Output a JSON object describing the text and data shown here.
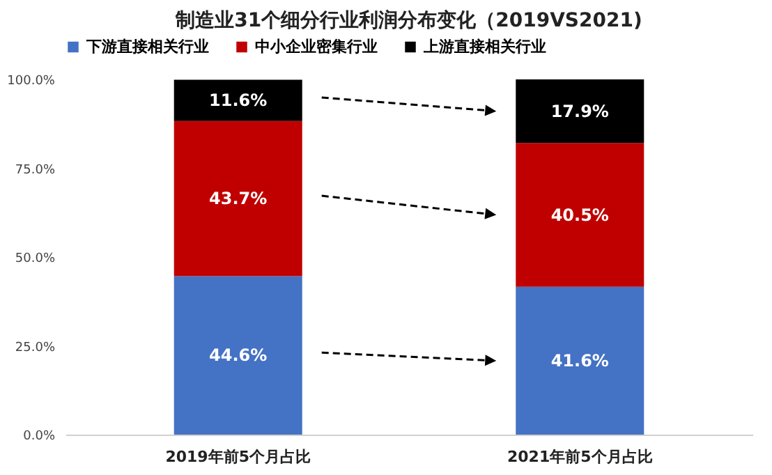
{
  "chart_data": {
    "type": "bar",
    "title": "制造业31个细分行业利润分布变化（2019VS2021)",
    "categories": [
      "2019年前5个月占比",
      "2021年前5个月占比"
    ],
    "stacked": true,
    "legend": "top",
    "ylim": [
      0,
      100
    ],
    "yticks": [
      {
        "value": 0,
        "label": "0.0%"
      },
      {
        "value": 25,
        "label": "25.0%"
      },
      {
        "value": 50,
        "label": "50.0%"
      },
      {
        "value": 75,
        "label": "75.0%"
      },
      {
        "value": 100,
        "label": "100.0%"
      }
    ],
    "series": [
      {
        "name": "下游直接相关行业",
        "color": "#4472c4",
        "values": [
          44.6,
          41.6
        ],
        "value_labels": [
          "44.6%",
          "41.6%"
        ]
      },
      {
        "name": "中小企业密集行业",
        "color": "#c00000",
        "values": [
          43.7,
          40.5
        ],
        "value_labels": [
          "43.7%",
          "40.5%"
        ]
      },
      {
        "name": "上游直接相关行业",
        "color": "#000000",
        "values": [
          11.6,
          17.9
        ],
        "value_labels": [
          "11.6%",
          "17.9%"
        ]
      }
    ]
  }
}
